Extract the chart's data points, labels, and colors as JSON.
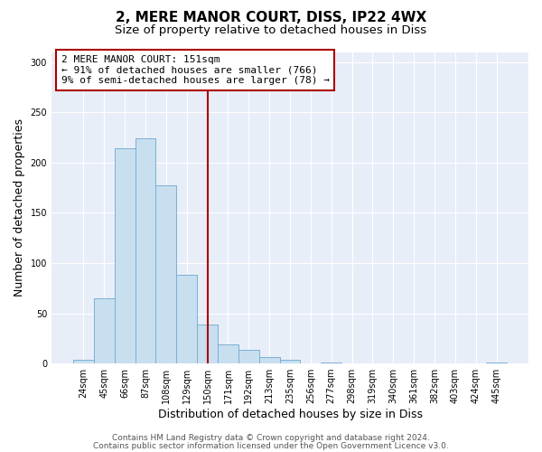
{
  "title": "2, MERE MANOR COURT, DISS, IP22 4WX",
  "subtitle": "Size of property relative to detached houses in Diss",
  "xlabel": "Distribution of detached houses by size in Diss",
  "ylabel": "Number of detached properties",
  "bar_labels": [
    "24sqm",
    "45sqm",
    "66sqm",
    "87sqm",
    "108sqm",
    "129sqm",
    "150sqm",
    "171sqm",
    "192sqm",
    "213sqm",
    "235sqm",
    "256sqm",
    "277sqm",
    "298sqm",
    "319sqm",
    "340sqm",
    "361sqm",
    "382sqm",
    "403sqm",
    "424sqm",
    "445sqm"
  ],
  "bar_values": [
    4,
    65,
    214,
    224,
    177,
    88,
    39,
    19,
    14,
    6,
    4,
    0,
    1,
    0,
    0,
    0,
    0,
    0,
    0,
    0,
    1
  ],
  "bar_color": "#c8dff0",
  "bar_edge_color": "#7bafd4",
  "vline_x": 6,
  "vline_color": "#aa0000",
  "annotation_box_text": "2 MERE MANOR COURT: 151sqm\n← 91% of detached houses are smaller (766)\n9% of semi-detached houses are larger (78) →",
  "box_edge_color": "#aa0000",
  "ylim": [
    0,
    310
  ],
  "yticks": [
    0,
    50,
    100,
    150,
    200,
    250,
    300
  ],
  "footer_line1": "Contains HM Land Registry data © Crown copyright and database right 2024.",
  "footer_line2": "Contains public sector information licensed under the Open Government Licence v3.0.",
  "bg_color": "#ffffff",
  "plot_bg_color": "#e8eef8",
  "title_fontsize": 11,
  "subtitle_fontsize": 9.5,
  "axis_label_fontsize": 9,
  "tick_fontsize": 7,
  "annotation_fontsize": 8,
  "footer_fontsize": 6.5
}
